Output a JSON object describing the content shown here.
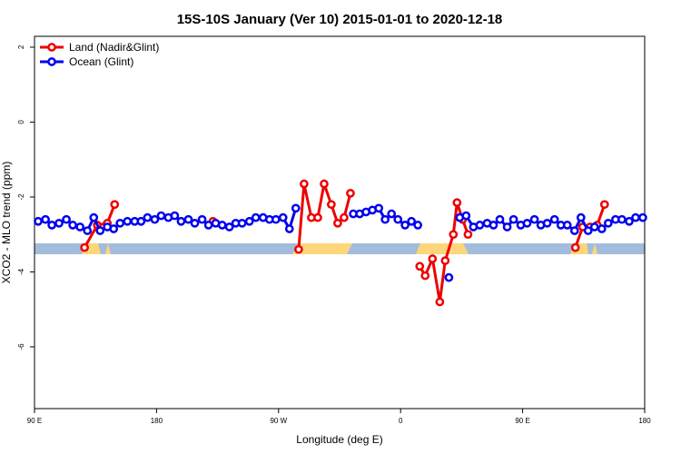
{
  "chart_data": {
    "type": "line",
    "title": "15S-10S January (Ver 10)   2015-01-01 to 2020-12-18",
    "x_label": "Longitude (deg E)",
    "y_label": "XCO2 - MLO trend (ppm)",
    "xlim": [
      90,
      540
    ],
    "ylim": [
      -7.65,
      2.29
    ],
    "xticks": [
      {
        "value": 90,
        "label": "90 E"
      },
      180,
      {
        "value": 270,
        "label": "90 W"
      },
      {
        "value": 360,
        "label": "0"
      },
      {
        "value": 450,
        "label": "90 E"
      },
      {
        "value": 540,
        "label": "180"
      }
    ],
    "yticks": [
      2,
      0,
      -2,
      -4,
      -6
    ],
    "legend": "top-left",
    "series": [
      {
        "name": "Land (Nadir&Glint)",
        "color": "#ee0000",
        "x": [
          126.9,
          136.3,
          143.7,
          149.1,
          180,
          221.6,
          260,
          284.8,
          288.8,
          294.2,
          298.9,
          303.6,
          308.9,
          313.6,
          318.3,
          323.0,
          350,
          374.1,
          378.1,
          383.5,
          388.9,
          392.9,
          398.9,
          401.6,
          405.7,
          409.7,
          450,
          488.9,
          494.3,
          499.7,
          505.0,
          510.4
        ],
        "values": [
          -3.35,
          -2.75,
          -2.7,
          -2.2,
          null,
          -2.65,
          null,
          -3.4,
          -1.65,
          -2.55,
          -2.55,
          -1.65,
          -2.2,
          -2.7,
          -2.55,
          -1.9,
          null,
          -3.85,
          -4.1,
          -3.65,
          -4.8,
          -3.7,
          -3.0,
          -2.15,
          -2.6,
          -3.0,
          null,
          -3.35,
          -2.8,
          -2.8,
          -2.75,
          -2.2
        ]
      },
      {
        "name": "Ocean (Glint)",
        "color": "#0000ee",
        "x": [
          92.7,
          98.1,
          102.8,
          108.1,
          113.5,
          118.2,
          123.6,
          129.0,
          133.7,
          138.4,
          143.7,
          148.4,
          153.1,
          158.5,
          163.9,
          168.6,
          173.3,
          178.7,
          183.4,
          188.7,
          193.4,
          198.1,
          203.5,
          208.2,
          213.6,
          218.3,
          223.6,
          228.4,
          233.7,
          238.4,
          243.1,
          248.5,
          253.2,
          258.6,
          263.3,
          268.0,
          273.3,
          278.0,
          282.7,
          300,
          325.1,
          329.8,
          334.5,
          339.2,
          343.9,
          348.6,
          353.3,
          358.0,
          363.3,
          368.0,
          372.7,
          385,
          395.6,
          400,
          403.6,
          408.3,
          413.7,
          418.4,
          423.8,
          428.5,
          433.2,
          438.6,
          443.3,
          448.6,
          453.3,
          458.7,
          463.4,
          468.1,
          473.5,
          478.2,
          482.9,
          488.3,
          493.0,
          498.3,
          503.0,
          508.4,
          513.1,
          518.5,
          523.2,
          528.6,
          533.3,
          538.6
        ],
        "values": [
          -2.65,
          -2.6,
          -2.75,
          -2.7,
          -2.6,
          -2.75,
          -2.8,
          -2.9,
          -2.55,
          -2.9,
          -2.8,
          -2.85,
          -2.7,
          -2.65,
          -2.65,
          -2.65,
          -2.55,
          -2.6,
          -2.5,
          -2.55,
          -2.5,
          -2.65,
          -2.6,
          -2.7,
          -2.6,
          -2.75,
          -2.7,
          -2.75,
          -2.8,
          -2.7,
          -2.7,
          -2.65,
          -2.55,
          -2.55,
          -2.6,
          -2.6,
          -2.55,
          -2.85,
          -2.3,
          null,
          -2.45,
          -2.45,
          -2.4,
          -2.35,
          -2.3,
          -2.6,
          -2.45,
          -2.6,
          -2.75,
          -2.65,
          -2.75,
          null,
          -4.15,
          null,
          -2.55,
          -2.5,
          -2.8,
          -2.75,
          -2.7,
          -2.75,
          -2.6,
          -2.8,
          -2.6,
          -2.75,
          -2.7,
          -2.6,
          -2.75,
          -2.7,
          -2.6,
          -2.75,
          -2.75,
          -2.9,
          -2.55,
          -2.9,
          -2.8,
          -2.85,
          -2.7,
          -2.6,
          -2.6,
          -2.65,
          -2.55,
          -2.55
        ]
      }
    ]
  }
}
